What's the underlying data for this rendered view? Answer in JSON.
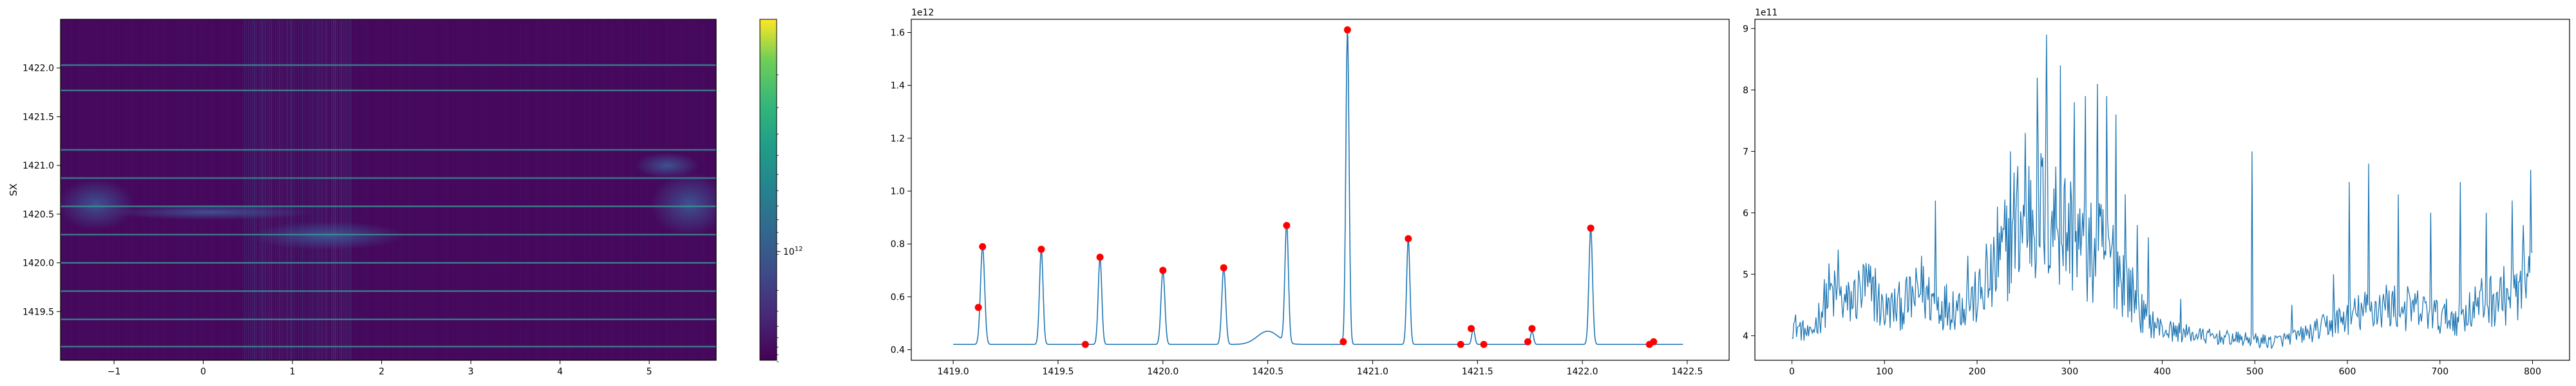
{
  "chart_data": [
    {
      "type": "heatmap",
      "title": "",
      "ylabel": "SX",
      "xlabel": "",
      "xlim": [
        -1.6,
        5.75
      ],
      "ylim": [
        1419.0,
        1422.5
      ],
      "xticks": [
        -1,
        0,
        1,
        2,
        3,
        4,
        5
      ],
      "xtick_labels": [
        "−1",
        "0",
        "1",
        "2",
        "3",
        "4",
        "5"
      ],
      "yticks": [
        1419.5,
        1420.0,
        1420.5,
        1421.0,
        1421.5,
        1422.0
      ],
      "ytick_labels": [
        "1419.5",
        "1420.0",
        "1420.5",
        "1421.0",
        "1421.5",
        "1422.0"
      ],
      "colormap": "viridis",
      "colorbar": {
        "scale": "log",
        "tick_label": "10",
        "tick_exponent": "12"
      },
      "bright_horizontal_lines_y": [
        1419.14,
        1419.42,
        1419.71,
        1420.0,
        1420.29,
        1420.58,
        1420.87,
        1421.16,
        1421.77,
        1422.03
      ],
      "vertical_band_x": [
        0.45,
        1.65
      ]
    },
    {
      "type": "line",
      "title": "",
      "xlabel": "",
      "ylabel": "",
      "xlim": [
        1418.8,
        1422.7
      ],
      "ylim": [
        0.36,
        1.65
      ],
      "y_offset_label": "1e12",
      "xticks": [
        1419.0,
        1419.5,
        1420.0,
        1420.5,
        1421.0,
        1421.5,
        1422.0,
        1422.5
      ],
      "xtick_labels": [
        "1419.0",
        "1419.5",
        "1420.0",
        "1420.5",
        "1421.0",
        "1421.5",
        "1422.0",
        "1422.5"
      ],
      "yticks": [
        0.4,
        0.6,
        0.8,
        1.0,
        1.2,
        1.4,
        1.6
      ],
      "ytick_labels": [
        "0.4",
        "0.6",
        "0.8",
        "1.0",
        "1.2",
        "1.4",
        "1.6"
      ],
      "line_color": "#1f77b4",
      "marker_color": "#ff0000",
      "baseline": 0.42,
      "peaks": [
        {
          "x": 1419.14,
          "y": 0.79,
          "w": 0.014
        },
        {
          "x": 1419.42,
          "y": 0.78,
          "w": 0.012
        },
        {
          "x": 1419.7,
          "y": 0.75,
          "w": 0.012
        },
        {
          "x": 1420.0,
          "y": 0.7,
          "w": 0.013
        },
        {
          "x": 1420.29,
          "y": 0.71,
          "w": 0.013
        },
        {
          "x": 1420.59,
          "y": 0.87,
          "w": 0.012
        },
        {
          "x": 1420.88,
          "y": 1.61,
          "w": 0.011
        },
        {
          "x": 1421.17,
          "y": 0.82,
          "w": 0.011
        },
        {
          "x": 1421.48,
          "y": 0.48,
          "w": 0.01
        },
        {
          "x": 1421.76,
          "y": 0.47,
          "w": 0.01
        },
        {
          "x": 1422.04,
          "y": 0.86,
          "w": 0.012
        },
        {
          "x": 1422.33,
          "y": 0.43,
          "w": 0.01
        }
      ],
      "bump": {
        "x": 1420.5,
        "y": 0.47,
        "w": 0.07
      },
      "markers": [
        {
          "x": 1419.12,
          "y": 0.56
        },
        {
          "x": 1419.14,
          "y": 0.79
        },
        {
          "x": 1419.42,
          "y": 0.78
        },
        {
          "x": 1419.63,
          "y": 0.42
        },
        {
          "x": 1419.7,
          "y": 0.75
        },
        {
          "x": 1420.0,
          "y": 0.7
        },
        {
          "x": 1420.29,
          "y": 0.71
        },
        {
          "x": 1420.59,
          "y": 0.87
        },
        {
          "x": 1420.86,
          "y": 0.43
        },
        {
          "x": 1420.88,
          "y": 1.61
        },
        {
          "x": 1421.17,
          "y": 0.82
        },
        {
          "x": 1421.42,
          "y": 0.42
        },
        {
          "x": 1421.47,
          "y": 0.48
        },
        {
          "x": 1421.53,
          "y": 0.42
        },
        {
          "x": 1421.74,
          "y": 0.43
        },
        {
          "x": 1421.76,
          "y": 0.48
        },
        {
          "x": 1422.04,
          "y": 0.86
        },
        {
          "x": 1422.32,
          "y": 0.42
        },
        {
          "x": 1422.34,
          "y": 0.43
        }
      ]
    },
    {
      "type": "line",
      "title": "",
      "xlabel": "",
      "ylabel": "",
      "xlim": [
        -40,
        840
      ],
      "ylim": [
        3.6,
        9.15
      ],
      "y_offset_label": "1e11",
      "xticks": [
        0,
        100,
        200,
        300,
        400,
        500,
        600,
        700,
        800
      ],
      "xtick_labels": [
        "0",
        "100",
        "200",
        "300",
        "400",
        "500",
        "600",
        "700",
        "800"
      ],
      "yticks": [
        4,
        5,
        6,
        7,
        8,
        9
      ],
      "ytick_labels": [
        "4",
        "5",
        "6",
        "7",
        "8",
        "9"
      ],
      "line_color": "#1f77b4",
      "n_points": 801,
      "anchors": [
        [
          0,
          4.2
        ],
        [
          20,
          4.0
        ],
        [
          40,
          4.7
        ],
        [
          60,
          4.5
        ],
        [
          80,
          4.8
        ],
        [
          100,
          4.4
        ],
        [
          120,
          4.5
        ],
        [
          140,
          4.7
        ],
        [
          160,
          4.5
        ],
        [
          180,
          4.5
        ],
        [
          200,
          4.6
        ],
        [
          220,
          5.0
        ],
        [
          240,
          5.8
        ],
        [
          260,
          6.0
        ],
        [
          280,
          6.0
        ],
        [
          300,
          5.7
        ],
        [
          320,
          5.3
        ],
        [
          340,
          5.4
        ],
        [
          360,
          4.9
        ],
        [
          380,
          4.3
        ],
        [
          400,
          4.1
        ],
        [
          440,
          4.0
        ],
        [
          480,
          3.95
        ],
        [
          520,
          3.9
        ],
        [
          560,
          4.05
        ],
        [
          600,
          4.3
        ],
        [
          640,
          4.5
        ],
        [
          680,
          4.4
        ],
        [
          700,
          4.3
        ],
        [
          720,
          4.3
        ],
        [
          740,
          4.5
        ],
        [
          760,
          4.6
        ],
        [
          780,
          4.7
        ],
        [
          800,
          4.8
        ]
      ],
      "spikes": [
        [
          50,
          5.4
        ],
        [
          90,
          5.1
        ],
        [
          140,
          5.3
        ],
        [
          155,
          6.2
        ],
        [
          190,
          5.3
        ],
        [
          210,
          5.5
        ],
        [
          222,
          6.1
        ],
        [
          236,
          7.0
        ],
        [
          252,
          7.3
        ],
        [
          265,
          8.2
        ],
        [
          275,
          8.9
        ],
        [
          290,
          8.4
        ],
        [
          305,
          7.8
        ],
        [
          317,
          7.9
        ],
        [
          330,
          8.1
        ],
        [
          340,
          7.9
        ],
        [
          350,
          7.6
        ],
        [
          360,
          6.3
        ],
        [
          373,
          5.8
        ],
        [
          385,
          5.6
        ],
        [
          420,
          4.6
        ],
        [
          497,
          7.0
        ],
        [
          540,
          4.5
        ],
        [
          585,
          5.0
        ],
        [
          602,
          6.5
        ],
        [
          623,
          6.8
        ],
        [
          655,
          6.3
        ],
        [
          690,
          6.0
        ],
        [
          722,
          6.5
        ],
        [
          750,
          6.0
        ],
        [
          778,
          6.2
        ],
        [
          790,
          5.8
        ],
        [
          798,
          6.7
        ]
      ]
    }
  ]
}
